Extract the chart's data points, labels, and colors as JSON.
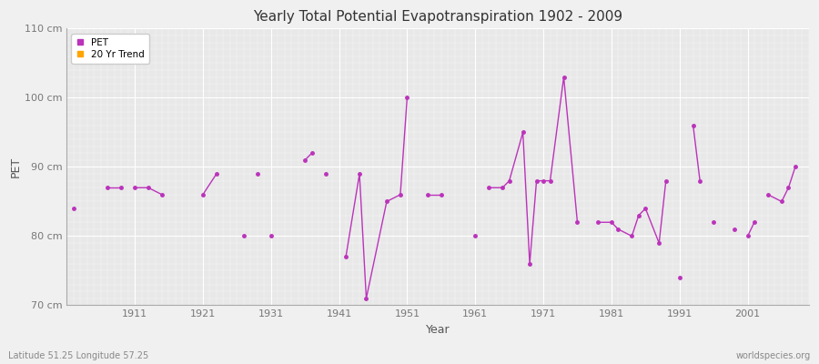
{
  "title": "Yearly Total Potential Evapotranspiration 1902 - 2009",
  "xlabel": "Year",
  "ylabel": "PET",
  "subtitle_left": "Latitude 51.25 Longitude 57.25",
  "subtitle_right": "worldspecies.org",
  "ylim": [
    70,
    110
  ],
  "yticks": [
    70,
    80,
    90,
    100,
    110
  ],
  "ytick_labels": [
    "70 cm",
    "80 cm",
    "90 cm",
    "100 cm",
    "110 cm"
  ],
  "xticks": [
    1911,
    1921,
    1931,
    1941,
    1951,
    1961,
    1971,
    1981,
    1991,
    2001
  ],
  "xtick_labels": [
    "1911",
    "1921",
    "1931",
    "1941",
    "1951",
    "1961",
    "1971",
    "1981",
    "1991",
    "2001"
  ],
  "xlim": [
    1901,
    2010
  ],
  "pet_color": "#bb33bb",
  "trend_color": "#ffa500",
  "fig_bg": "#f0f0f0",
  "plot_bg": "#e8e8e8",
  "line_segments": [
    [
      [
        1902
      ],
      [
        84
      ]
    ],
    [
      [
        1907,
        1909
      ],
      [
        87,
        87
      ]
    ],
    [
      [
        1911,
        1913,
        1915
      ],
      [
        87,
        87,
        86
      ]
    ],
    [
      [
        1921,
        1923
      ],
      [
        86,
        89
      ]
    ],
    [
      [
        1927
      ],
      [
        80
      ]
    ],
    [
      [
        1929
      ],
      [
        89
      ]
    ],
    [
      [
        1931
      ],
      [
        80
      ]
    ],
    [
      [
        1936,
        1937
      ],
      [
        91,
        92
      ]
    ],
    [
      [
        1939
      ],
      [
        89
      ]
    ],
    [
      [
        1942,
        1944,
        1945,
        1948,
        1950,
        1951
      ],
      [
        77,
        89,
        71,
        85,
        86,
        100
      ]
    ],
    [
      [
        1954,
        1956
      ],
      [
        86,
        86
      ]
    ],
    [
      [
        1961
      ],
      [
        80
      ]
    ],
    [
      [
        1963,
        1965,
        1966,
        1968,
        1969,
        1970,
        1971,
        1972,
        1974,
        1976
      ],
      [
        87,
        87,
        88,
        95,
        76,
        88,
        88,
        88,
        103,
        82
      ]
    ],
    [
      [
        1979,
        1981,
        1982,
        1984,
        1985,
        1986,
        1988,
        1989
      ],
      [
        82,
        82,
        81,
        80,
        83,
        84,
        79,
        88
      ]
    ],
    [
      [
        1991
      ],
      [
        74
      ]
    ],
    [
      [
        1993,
        1994
      ],
      [
        96,
        88
      ]
    ],
    [
      [
        1996
      ],
      [
        82
      ]
    ],
    [
      [
        1999
      ],
      [
        81
      ]
    ],
    [
      [
        2001,
        2002
      ],
      [
        80,
        82
      ]
    ],
    [
      [
        2004,
        2006,
        2007,
        2008
      ],
      [
        86,
        85,
        87,
        90
      ]
    ]
  ]
}
